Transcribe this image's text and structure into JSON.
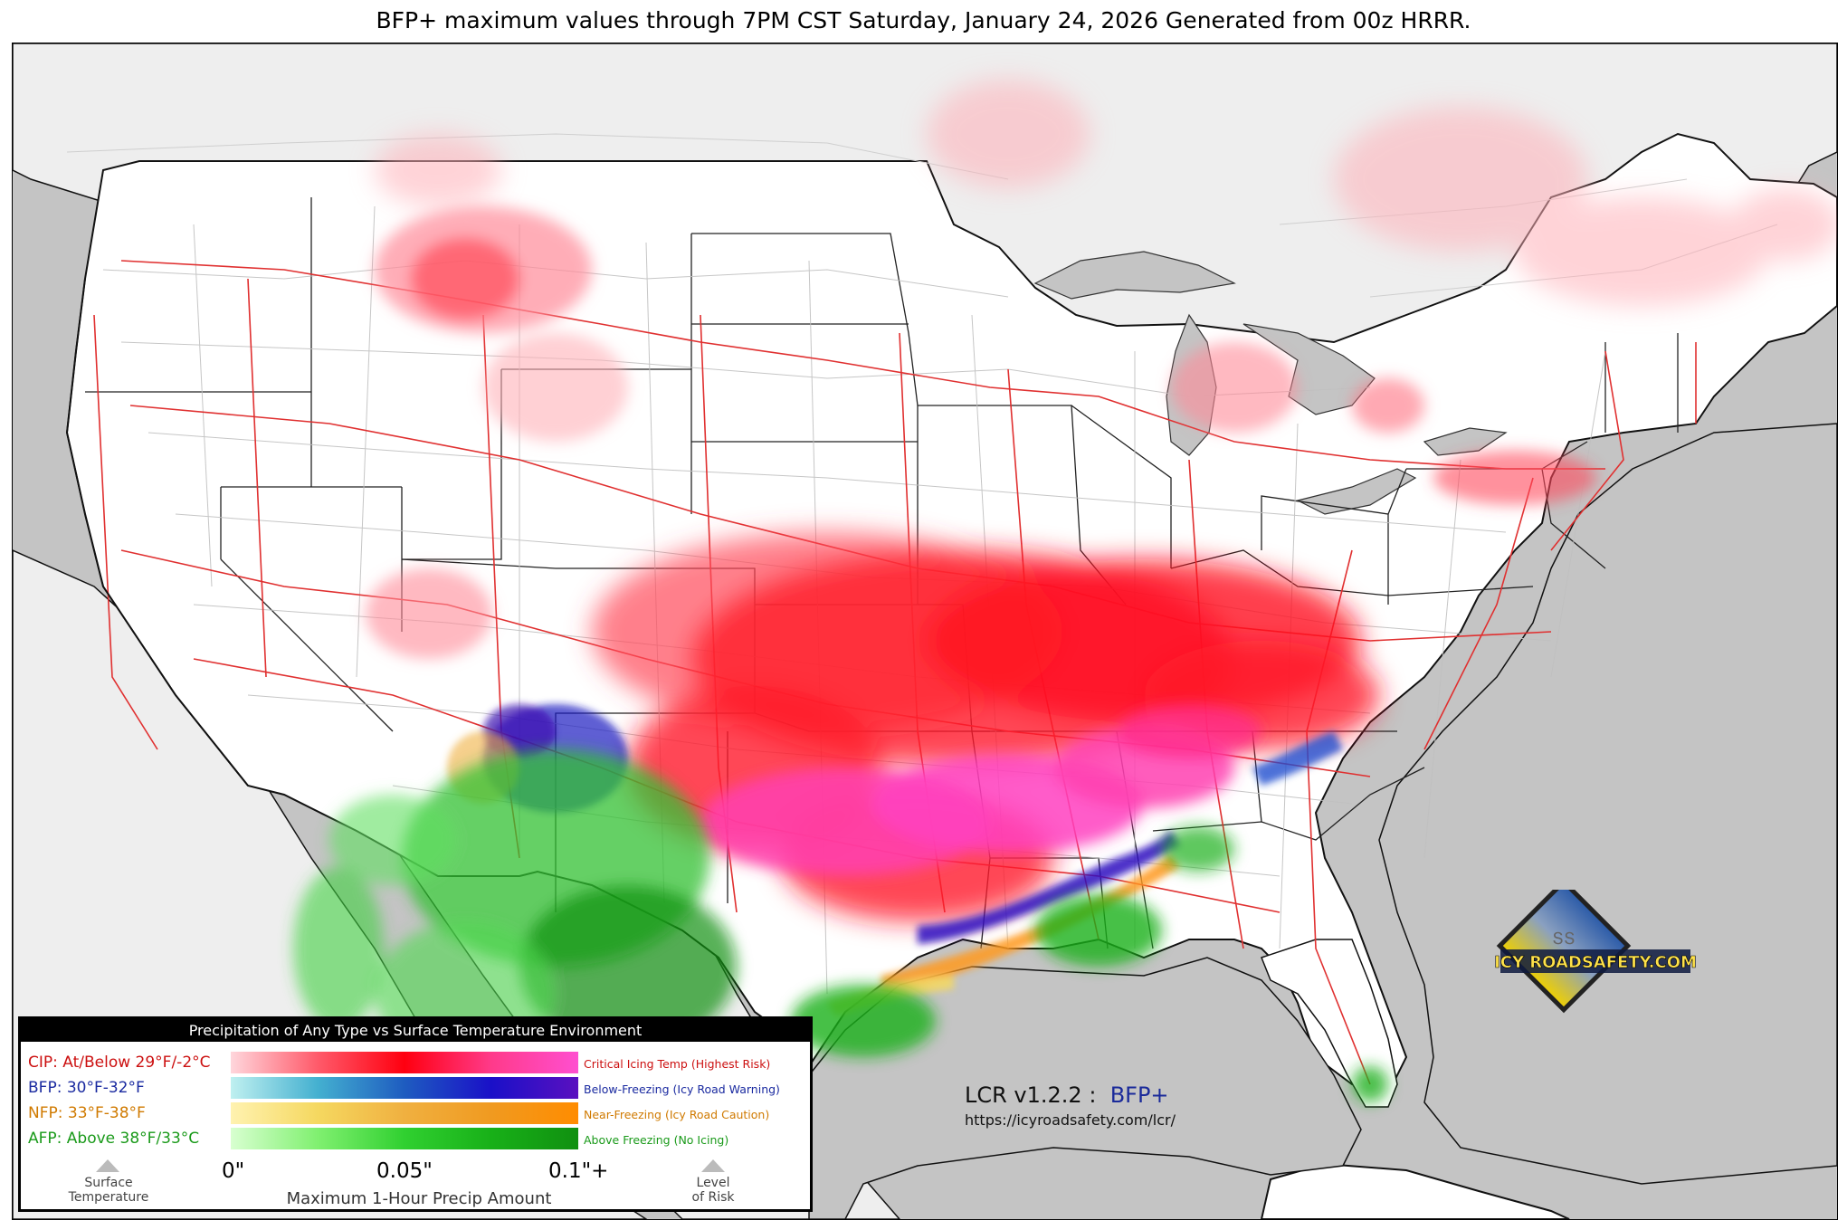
{
  "title": "BFP+ maximum values through 7PM CST Saturday, January 24, 2026 Generated from 00z HRRR.",
  "legend": {
    "heading": "Precipitation of Any Type vs Surface Temperature Environment",
    "rows": [
      {
        "label": "CIP: At/Below 29°F/-2°C",
        "desc": "Critical Icing Temp (Highest Risk)",
        "label_color": "#cc1010",
        "desc_color": "#cc1010",
        "gradient": [
          "#ffd6dc",
          "#ff5a6a",
          "#ff0010",
          "#ff3a8a",
          "#ff4fd0"
        ]
      },
      {
        "label": "BFP: 30°F-32°F",
        "desc": "Below-Freezing (Icy Road Warning)",
        "label_color": "#1a2aa0",
        "desc_color": "#1a2aa0",
        "gradient": [
          "#bff0f0",
          "#44b0d0",
          "#1e5cc0",
          "#1a10c8",
          "#5a10c0"
        ]
      },
      {
        "label": "NFP: 33°F-38°F",
        "desc": "Near-Freezing (Icy Road Caution)",
        "label_color": "#d07a00",
        "desc_color": "#d07a00",
        "gradient": [
          "#fff2b0",
          "#f5d860",
          "#f0b040",
          "#f09a20",
          "#ff8c00"
        ]
      },
      {
        "label": "AFP: Above 38°F/33°C",
        "desc": "Above Freezing (No Icing)",
        "label_color": "#1a9a1a",
        "desc_color": "#1a9a1a",
        "gradient": [
          "#d8ffd0",
          "#80f070",
          "#30d030",
          "#18b018",
          "#109010"
        ]
      }
    ],
    "ticks": [
      "0\"",
      "0.05\"",
      "0.1\"+"
    ],
    "axis_label": "Maximum 1-Hour Precip Amount",
    "left_marker": "Surface\nTemperature",
    "right_marker": "Level\nof Risk"
  },
  "version": {
    "prefix": "LCR v1.2.2 :",
    "product": "BFP+"
  },
  "url": "https://icyroadsafety.com/lcr/",
  "logo": {
    "text": "ICY ROADSAFETY.COM",
    "icon": "road-warning-sign-icon"
  },
  "colors": {
    "ocean": "#c4c4c4",
    "canada": "#eeeeee",
    "us": "#ffffff",
    "highways": "#e03030",
    "roads": "#b8b8b8",
    "lakes": "#c4c4c4"
  }
}
